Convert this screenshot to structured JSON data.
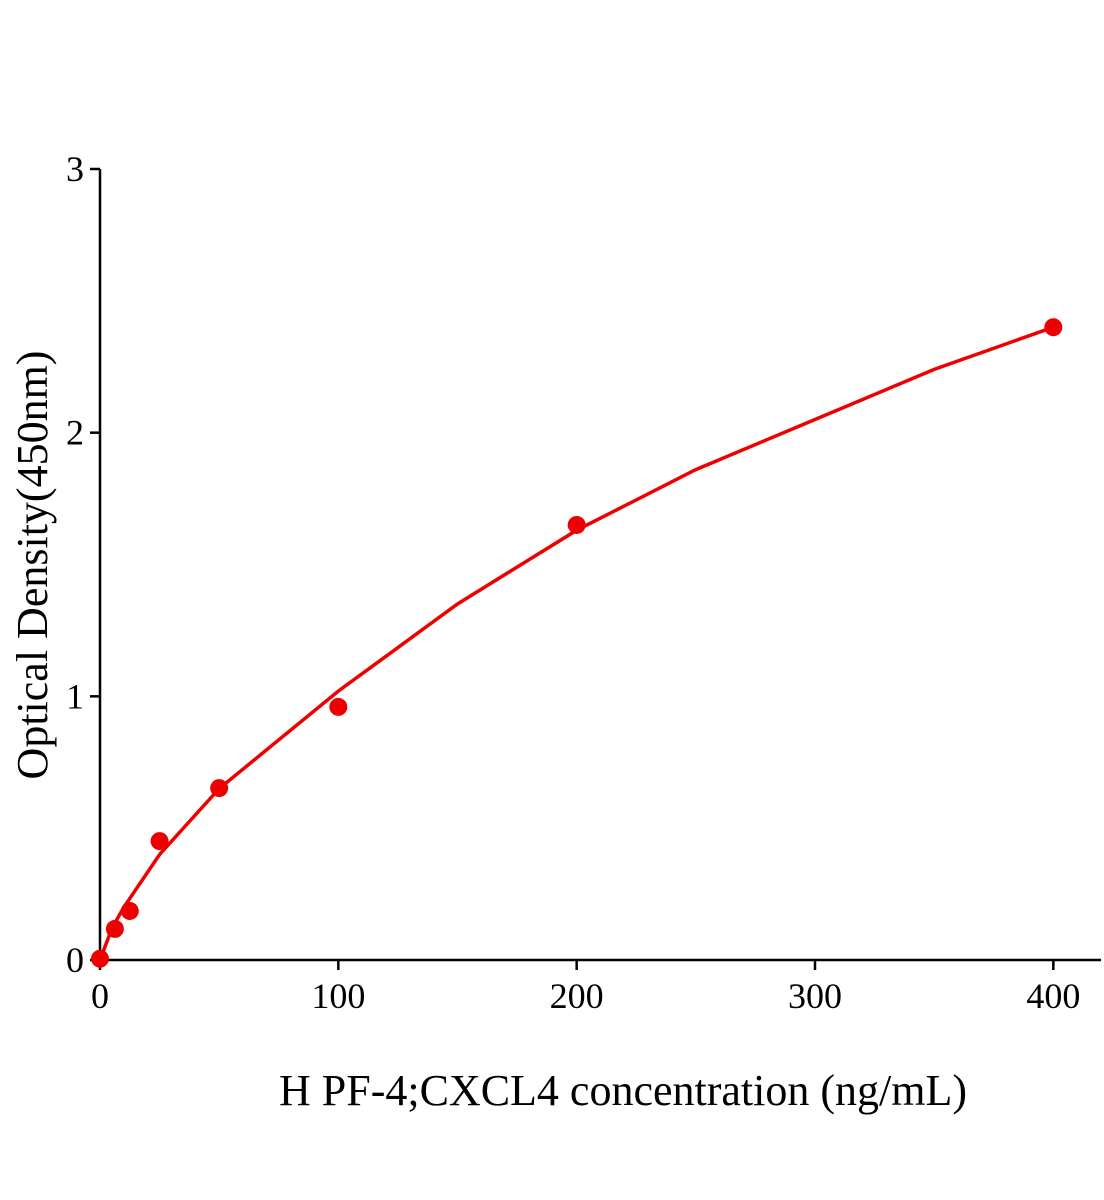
{
  "chart_data": {
    "type": "scatter",
    "x_label": "H PF-4;CXCL4 concentration (ng/mL)",
    "y_label": "Optical Density(450nm)",
    "x": [
      0,
      6.25,
      12.5,
      25,
      50,
      100,
      200,
      400
    ],
    "values": [
      0.005,
      0.118,
      0.186,
      0.451,
      0.652,
      0.96,
      1.65,
      2.4
    ],
    "color": "#ee0000",
    "fit": {
      "x": [
        0,
        5,
        10,
        25,
        50,
        100,
        150,
        200,
        250,
        300,
        350,
        400
      ],
      "values": [
        0,
        0.12,
        0.2,
        0.4,
        0.65,
        1.02,
        1.35,
        1.63,
        1.86,
        2.05,
        2.24,
        2.4
      ]
    },
    "xlim": [
      0,
      420
    ],
    "xticks": [
      0,
      100,
      200,
      300,
      400
    ],
    "ylim": [
      0,
      3
    ],
    "yticks": [
      0,
      1,
      2,
      3
    ]
  }
}
